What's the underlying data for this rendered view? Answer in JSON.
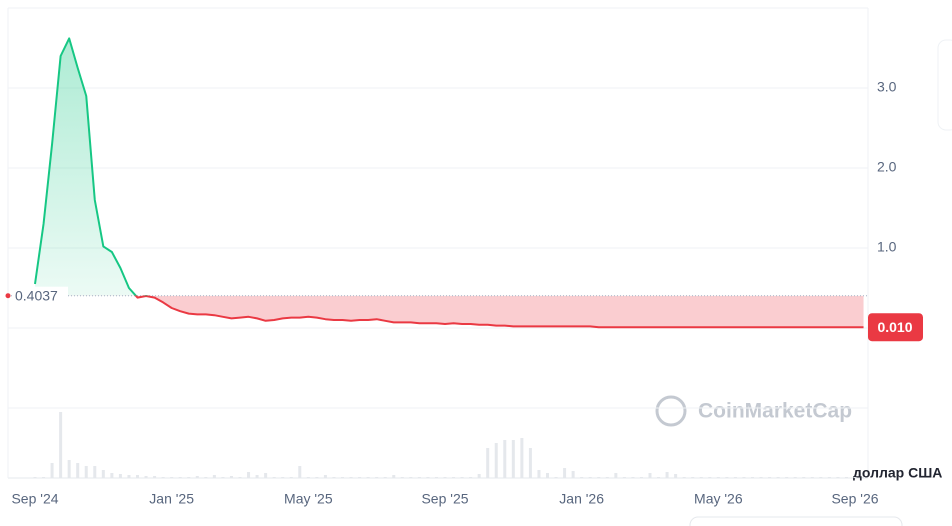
{
  "chart_data": {
    "type": "line",
    "categories": [
      "Sep '24",
      null,
      null,
      null,
      null,
      null,
      null,
      null,
      null,
      null,
      null,
      null,
      null,
      null,
      null,
      null,
      "Jan '25",
      null,
      null,
      null,
      null,
      null,
      null,
      null,
      null,
      null,
      null,
      null,
      null,
      null,
      null,
      null,
      "May '25",
      null,
      null,
      null,
      null,
      null,
      null,
      null,
      null,
      null,
      null,
      null,
      null,
      null,
      null,
      null,
      "Sep '25",
      null,
      null,
      null,
      null,
      null,
      null,
      null,
      null,
      null,
      null,
      null,
      null,
      null,
      null,
      null,
      "Jan '26",
      null,
      null,
      null,
      null,
      null,
      null,
      null,
      null,
      null,
      null,
      null,
      null,
      null,
      null,
      null,
      "May '26",
      null,
      null,
      null,
      null,
      null,
      null,
      null,
      null,
      null,
      null,
      null,
      null,
      null,
      null,
      null,
      "Sep '26",
      null
    ],
    "values": [
      0.55,
      1.3,
      2.3,
      3.4,
      3.62,
      3.25,
      2.9,
      1.6,
      1.02,
      0.95,
      0.75,
      0.5,
      0.38,
      0.4,
      0.38,
      0.32,
      0.25,
      0.21,
      0.18,
      0.17,
      0.17,
      0.16,
      0.14,
      0.12,
      0.13,
      0.14,
      0.12,
      0.09,
      0.1,
      0.12,
      0.13,
      0.13,
      0.14,
      0.13,
      0.11,
      0.1,
      0.1,
      0.09,
      0.1,
      0.1,
      0.11,
      0.09,
      0.07,
      0.07,
      0.07,
      0.06,
      0.06,
      0.06,
      0.05,
      0.06,
      0.05,
      0.05,
      0.04,
      0.04,
      0.03,
      0.03,
      0.02,
      0.02,
      0.02,
      0.02,
      0.02,
      0.02,
      0.02,
      0.02,
      0.02,
      0.02,
      0.01,
      0.01,
      0.01,
      0.01,
      0.01,
      0.01,
      0.01,
      0.01,
      0.01,
      0.01,
      0.01,
      0.01,
      0.01,
      0.01,
      0.01,
      0.01,
      0.01,
      0.01,
      0.01,
      0.01,
      0.01,
      0.01,
      0.01,
      0.01,
      0.01,
      0.01,
      0.01,
      0.01,
      0.01,
      0.01,
      0.01,
      0.01
    ],
    "volume": [
      1,
      1,
      15,
      66,
      18,
      15,
      12,
      12,
      8,
      5,
      4,
      3,
      3,
      2,
      2,
      1,
      1,
      1,
      1,
      2,
      1,
      3,
      1,
      2,
      1,
      6,
      3,
      5,
      1,
      1,
      1,
      12,
      1,
      1,
      3,
      1,
      1,
      1,
      1,
      1,
      1,
      1,
      3,
      1,
      1,
      1,
      1,
      1,
      1,
      1,
      1,
      1,
      4,
      30,
      35,
      38,
      38,
      40,
      30,
      8,
      5,
      1,
      10,
      7,
      1,
      1,
      1,
      1,
      5,
      1,
      1,
      1,
      5,
      1,
      6,
      4,
      1,
      1,
      1,
      1,
      1,
      1,
      1,
      1,
      1,
      1,
      1,
      1,
      1,
      1,
      1,
      1,
      1,
      1,
      1,
      1,
      1,
      1
    ],
    "volume_lim": [
      0,
      70
    ],
    "ylim": [
      -1,
      4
    ],
    "yticks": [
      {
        "value": 1,
        "label": "1.0"
      },
      {
        "value": 2,
        "label": "2.0"
      },
      {
        "value": 3,
        "label": "3.0"
      }
    ],
    "baseline": {
      "value": 0.4037,
      "label": "0.4037"
    },
    "price_label": {
      "value": 0.01,
      "label": "0.010"
    },
    "up_color": "#16c784",
    "down_color": "#ea3943",
    "currency": "доллар США",
    "watermark": "CoinMarketCap",
    "grid": true
  }
}
